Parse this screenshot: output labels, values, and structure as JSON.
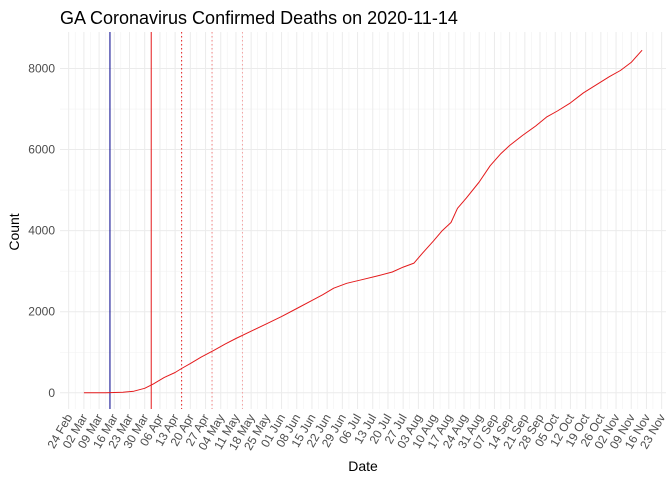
{
  "chart_data": {
    "type": "line",
    "title": "GA Coronavirus Confirmed Deaths on 2020-11-14",
    "xlabel": "Date",
    "ylabel": "Count",
    "xlim": [
      "2020-02-20",
      "2020-11-25"
    ],
    "ylim": [
      -400,
      8900
    ],
    "x_ticks": [
      {
        "date": "2020-02-24",
        "label": "24 Feb"
      },
      {
        "date": "2020-03-02",
        "label": "02 Mar"
      },
      {
        "date": "2020-03-09",
        "label": "09 Mar"
      },
      {
        "date": "2020-03-16",
        "label": "16 Mar"
      },
      {
        "date": "2020-03-23",
        "label": "23 Mar"
      },
      {
        "date": "2020-03-30",
        "label": "30 Mar"
      },
      {
        "date": "2020-04-06",
        "label": "06 Apr"
      },
      {
        "date": "2020-04-13",
        "label": "13 Apr"
      },
      {
        "date": "2020-04-20",
        "label": "20 Apr"
      },
      {
        "date": "2020-04-27",
        "label": "27 Apr"
      },
      {
        "date": "2020-05-04",
        "label": "04 May"
      },
      {
        "date": "2020-05-11",
        "label": "11 May"
      },
      {
        "date": "2020-05-18",
        "label": "18 May"
      },
      {
        "date": "2020-05-25",
        "label": "25 May"
      },
      {
        "date": "2020-06-01",
        "label": "01 Jun"
      },
      {
        "date": "2020-06-08",
        "label": "08 Jun"
      },
      {
        "date": "2020-06-15",
        "label": "15 Jun"
      },
      {
        "date": "2020-06-22",
        "label": "22 Jun"
      },
      {
        "date": "2020-06-29",
        "label": "29 Jun"
      },
      {
        "date": "2020-07-06",
        "label": "06 Jul"
      },
      {
        "date": "2020-07-13",
        "label": "13 Jul"
      },
      {
        "date": "2020-07-20",
        "label": "20 Jul"
      },
      {
        "date": "2020-07-27",
        "label": "27 Jul"
      },
      {
        "date": "2020-08-03",
        "label": "03 Aug"
      },
      {
        "date": "2020-08-10",
        "label": "10 Aug"
      },
      {
        "date": "2020-08-17",
        "label": "17 Aug"
      },
      {
        "date": "2020-08-24",
        "label": "24 Aug"
      },
      {
        "date": "2020-08-31",
        "label": "31 Aug"
      },
      {
        "date": "2020-09-07",
        "label": "07 Sep"
      },
      {
        "date": "2020-09-14",
        "label": "14 Sep"
      },
      {
        "date": "2020-09-21",
        "label": "21 Sep"
      },
      {
        "date": "2020-09-28",
        "label": "28 Sep"
      },
      {
        "date": "2020-10-05",
        "label": "05 Oct"
      },
      {
        "date": "2020-10-12",
        "label": "12 Oct"
      },
      {
        "date": "2020-10-19",
        "label": "19 Oct"
      },
      {
        "date": "2020-10-26",
        "label": "26 Oct"
      },
      {
        "date": "2020-11-02",
        "label": "02 Nov"
      },
      {
        "date": "2020-11-09",
        "label": "09 Nov"
      },
      {
        "date": "2020-11-16",
        "label": "16 Nov"
      },
      {
        "date": "2020-11-23",
        "label": "23 Nov"
      }
    ],
    "y_ticks": [
      0,
      2000,
      4000,
      6000,
      8000
    ],
    "grid": true,
    "vertical_markers": [
      {
        "date": "2020-03-14",
        "color": "#00008b",
        "style": "solid"
      },
      {
        "date": "2020-04-02",
        "color": "#e41a1c",
        "style": "solid"
      },
      {
        "date": "2020-04-16",
        "color": "#e41a1c",
        "style": "dotted"
      },
      {
        "date": "2020-04-30",
        "color": "#f08080",
        "style": "dotted"
      },
      {
        "date": "2020-05-14",
        "color": "#f4a0a0",
        "style": "dotted"
      }
    ],
    "series": [
      {
        "color": "#e41a1c",
        "points": [
          [
            "2020-03-02",
            0
          ],
          [
            "2020-03-12",
            1
          ],
          [
            "2020-03-20",
            14
          ],
          [
            "2020-03-25",
            40
          ],
          [
            "2020-03-30",
            110
          ],
          [
            "2020-04-03",
            220
          ],
          [
            "2020-04-08",
            380
          ],
          [
            "2020-04-13",
            500
          ],
          [
            "2020-04-16",
            600
          ],
          [
            "2020-04-20",
            720
          ],
          [
            "2020-04-25",
            880
          ],
          [
            "2020-05-01",
            1050
          ],
          [
            "2020-05-06",
            1200
          ],
          [
            "2020-05-11",
            1340
          ],
          [
            "2020-05-18",
            1520
          ],
          [
            "2020-05-25",
            1700
          ],
          [
            "2020-06-01",
            1880
          ],
          [
            "2020-06-08",
            2080
          ],
          [
            "2020-06-15",
            2280
          ],
          [
            "2020-06-20",
            2420
          ],
          [
            "2020-06-25",
            2580
          ],
          [
            "2020-07-01",
            2700
          ],
          [
            "2020-07-08",
            2790
          ],
          [
            "2020-07-15",
            2880
          ],
          [
            "2020-07-22",
            2980
          ],
          [
            "2020-07-27",
            3100
          ],
          [
            "2020-08-01",
            3200
          ],
          [
            "2020-08-05",
            3450
          ],
          [
            "2020-08-10",
            3750
          ],
          [
            "2020-08-14",
            4000
          ],
          [
            "2020-08-18",
            4200
          ],
          [
            "2020-08-21",
            4550
          ],
          [
            "2020-08-25",
            4800
          ],
          [
            "2020-08-31",
            5200
          ],
          [
            "2020-09-05",
            5600
          ],
          [
            "2020-09-10",
            5900
          ],
          [
            "2020-09-14",
            6100
          ],
          [
            "2020-09-20",
            6350
          ],
          [
            "2020-09-26",
            6580
          ],
          [
            "2020-10-01",
            6800
          ],
          [
            "2020-10-06",
            6950
          ],
          [
            "2020-10-12",
            7150
          ],
          [
            "2020-10-18",
            7400
          ],
          [
            "2020-10-24",
            7600
          ],
          [
            "2020-10-30",
            7800
          ],
          [
            "2020-11-04",
            7950
          ],
          [
            "2020-11-09",
            8150
          ],
          [
            "2020-11-14",
            8450
          ]
        ]
      }
    ]
  }
}
